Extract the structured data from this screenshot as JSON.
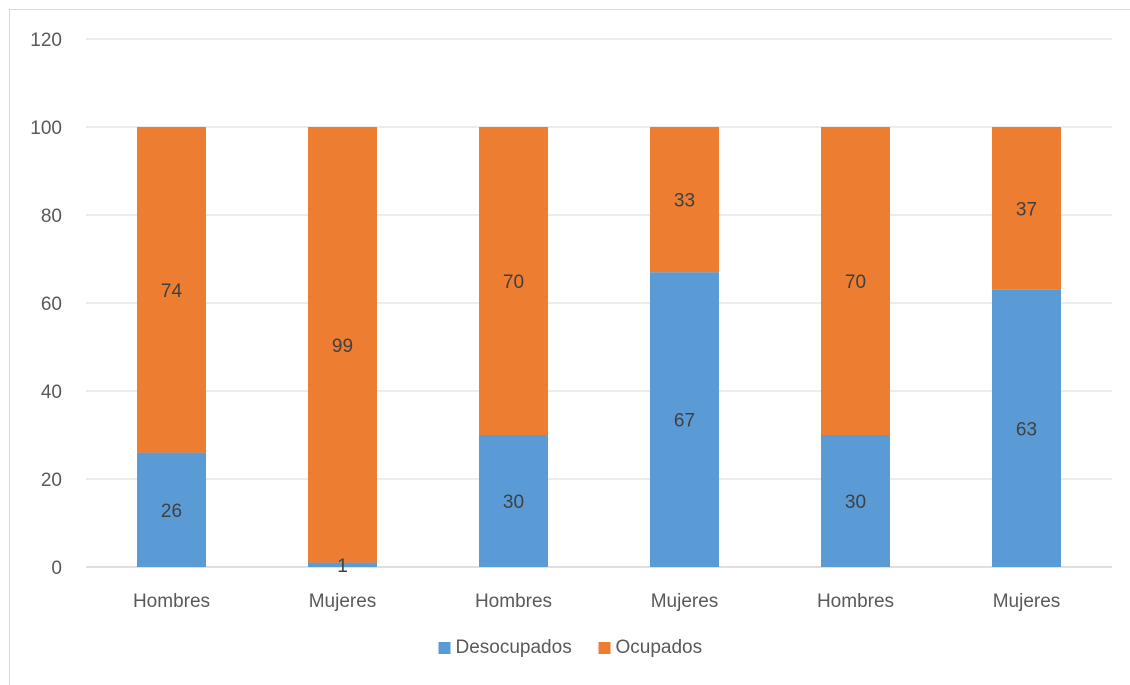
{
  "chart_data": {
    "type": "bar",
    "stacked": true,
    "categories": [
      "Hombres",
      "Mujeres",
      "Hombres",
      "Mujeres",
      "Hombres",
      "Mujeres"
    ],
    "series": [
      {
        "name": "Desocupados",
        "color": "#5b9bd5",
        "values": [
          26,
          1,
          30,
          67,
          30,
          63
        ]
      },
      {
        "name": "Ocupados",
        "color": "#ed7d31",
        "values": [
          74,
          99,
          70,
          33,
          70,
          37
        ]
      }
    ],
    "ylim": [
      0,
      120
    ],
    "yticks": [
      0,
      20,
      40,
      60,
      80,
      100,
      120
    ],
    "grid": true,
    "legend_position": "bottom",
    "title": "",
    "xlabel": "",
    "ylabel": ""
  }
}
